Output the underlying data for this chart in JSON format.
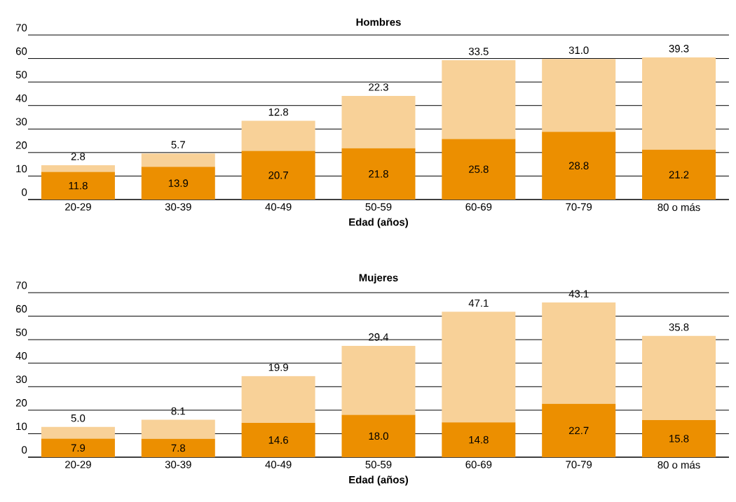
{
  "chart_data": [
    {
      "type": "bar",
      "title": "Hombres",
      "xlabel": "Edad (años)",
      "categories": [
        "20-29",
        "30-39",
        "40-49",
        "50-59",
        "60-69",
        "70-79",
        "80 o más"
      ],
      "stacked": true,
      "grid": "y",
      "ylim": [
        0,
        70
      ],
      "yticks": [
        0,
        10,
        20,
        30,
        40,
        50,
        60,
        70
      ],
      "series": [
        {
          "color": "#ec8f00",
          "values": [
            11.8,
            13.9,
            20.7,
            21.8,
            25.8,
            28.8,
            21.2
          ],
          "value_labels": [
            "11.8",
            "13.9",
            "20.7",
            "21.8",
            "25.8",
            "28.8",
            "21.2"
          ]
        },
        {
          "color": "#f8d198",
          "values": [
            2.8,
            5.7,
            12.8,
            22.3,
            33.5,
            31.0,
            39.3
          ],
          "value_labels": [
            "2.8",
            "5.7",
            "12.8",
            "22.3",
            "33.5",
            "31.0",
            "39.3"
          ]
        }
      ]
    },
    {
      "type": "bar",
      "title": "Mujeres",
      "xlabel": "Edad (años)",
      "categories": [
        "20-29",
        "30-39",
        "40-49",
        "50-59",
        "60-69",
        "70-79",
        "80 o más"
      ],
      "stacked": true,
      "grid": "y",
      "ylim": [
        0,
        70
      ],
      "yticks": [
        0,
        10,
        20,
        30,
        40,
        50,
        60,
        70
      ],
      "series": [
        {
          "color": "#ec8f00",
          "values": [
            7.9,
            7.8,
            14.6,
            18.0,
            14.8,
            22.7,
            15.8
          ],
          "value_labels": [
            "7.9",
            "7.8",
            "14.6",
            "18.0",
            "14.8",
            "22.7",
            "15.8"
          ]
        },
        {
          "color": "#f8d198",
          "values": [
            5.0,
            8.1,
            19.9,
            29.4,
            47.1,
            43.1,
            35.8
          ],
          "value_labels": [
            "5.0",
            "8.1",
            "19.9",
            "29.4",
            "47.1",
            "43.1",
            "35.8"
          ]
        }
      ]
    }
  ]
}
